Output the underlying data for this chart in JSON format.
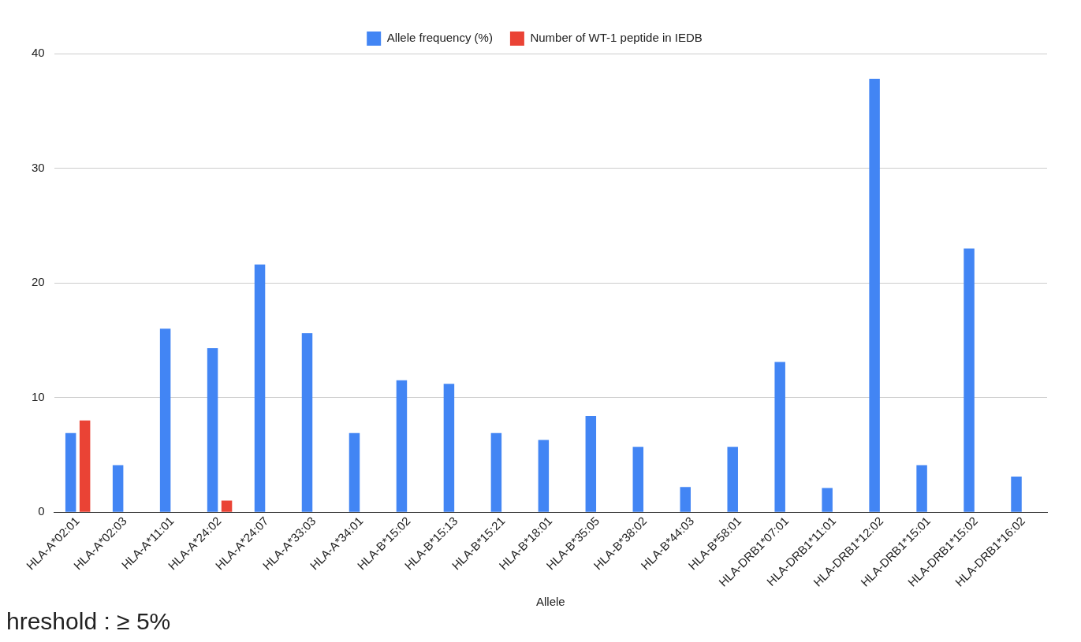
{
  "chart_data": {
    "type": "bar",
    "xlabel": "Allele",
    "categories": [
      "HLA-A*02:01",
      "HLA-A*02:03",
      "HLA-A*11:01",
      "HLA-A*24:02",
      "HLA-A*24:07",
      "HLA-A*33:03",
      "HLA-A*34:01",
      "HLA-B*15:02",
      "HLA-B*15:13",
      "HLA-B*15:21",
      "HLA-B*18:01",
      "HLA-B*35:05",
      "HLA-B*38:02",
      "HLA-B*44:03",
      "HLA-B*58:01",
      "HLA-DRB1*07:01",
      "HLA-DRB1*11:01",
      "HLA-DRB1*12:02",
      "HLA-DRB1*15:01",
      "HLA-DRB1*15:02",
      "HLA-DRB1*16:02"
    ],
    "series": [
      {
        "name": "Allele frequency (%)",
        "color": "#4285f4",
        "values": [
          6.9,
          4.1,
          16.0,
          14.3,
          21.6,
          15.6,
          6.9,
          11.5,
          11.2,
          6.9,
          6.3,
          8.4,
          5.7,
          2.2,
          5.7,
          13.1,
          2.1,
          37.8,
          4.1,
          23.0,
          3.1
        ]
      },
      {
        "name": "Number of WT-1 peptide in IEDB",
        "color": "#ea4335",
        "values": [
          8,
          null,
          null,
          1,
          null,
          null,
          null,
          null,
          null,
          null,
          null,
          null,
          null,
          null,
          null,
          null,
          null,
          null,
          null,
          null,
          null
        ]
      }
    ],
    "ylim": [
      0,
      40
    ],
    "yticks": [
      0,
      10,
      20,
      30,
      40
    ],
    "grid": "y",
    "legend": "top",
    "annotations": [
      "hreshold : ≥ 5%"
    ]
  }
}
